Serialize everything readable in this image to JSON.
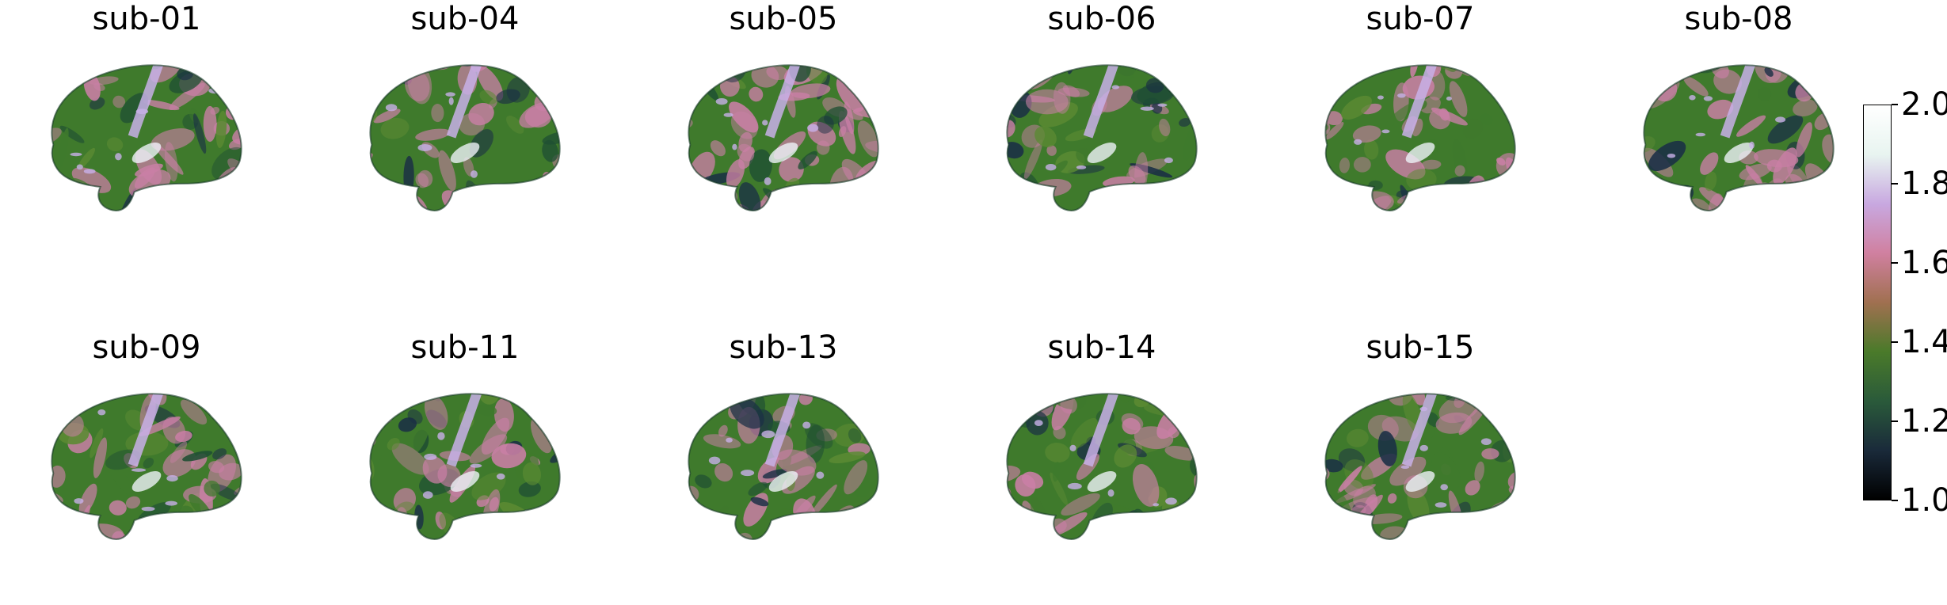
{
  "panels": [
    {
      "title": "sub-01",
      "tone": 0.35
    },
    {
      "title": "sub-04",
      "tone": 0.7
    },
    {
      "title": "sub-05",
      "tone": 0.4
    },
    {
      "title": "sub-06",
      "tone": 0.38
    },
    {
      "title": "sub-07",
      "tone": 0.45
    },
    {
      "title": "sub-08",
      "tone": 0.6
    },
    {
      "title": "sub-09",
      "tone": 0.45
    },
    {
      "title": "sub-11",
      "tone": 0.52
    },
    {
      "title": "sub-13",
      "tone": 0.5
    },
    {
      "title": "sub-14",
      "tone": 0.42
    },
    {
      "title": "sub-15",
      "tone": 0.44
    }
  ],
  "colorbar": {
    "min": 1.0,
    "max": 2.0,
    "ticks": [
      "1.0",
      "1.2",
      "1.4",
      "1.6",
      "1.8",
      "2.0"
    ],
    "tick_values": [
      1.0,
      1.2,
      1.4,
      1.6,
      1.8,
      2.0
    ],
    "colormap": "cubehelix",
    "colors": [
      "#000000",
      "#1a2a3a",
      "#2a5a3a",
      "#4a7a2a",
      "#a07050",
      "#d080a0",
      "#c8a8e0",
      "#e8f4f0",
      "#ffffff"
    ]
  },
  "brain_colors": {
    "green_dark": "#1f4f33",
    "green": "#3f7a2c",
    "olive": "#5b8a33",
    "pink": "#c97fa5",
    "lilac": "#c8b0e8",
    "white": "#eef2f8",
    "navy": "#1a2f45"
  }
}
